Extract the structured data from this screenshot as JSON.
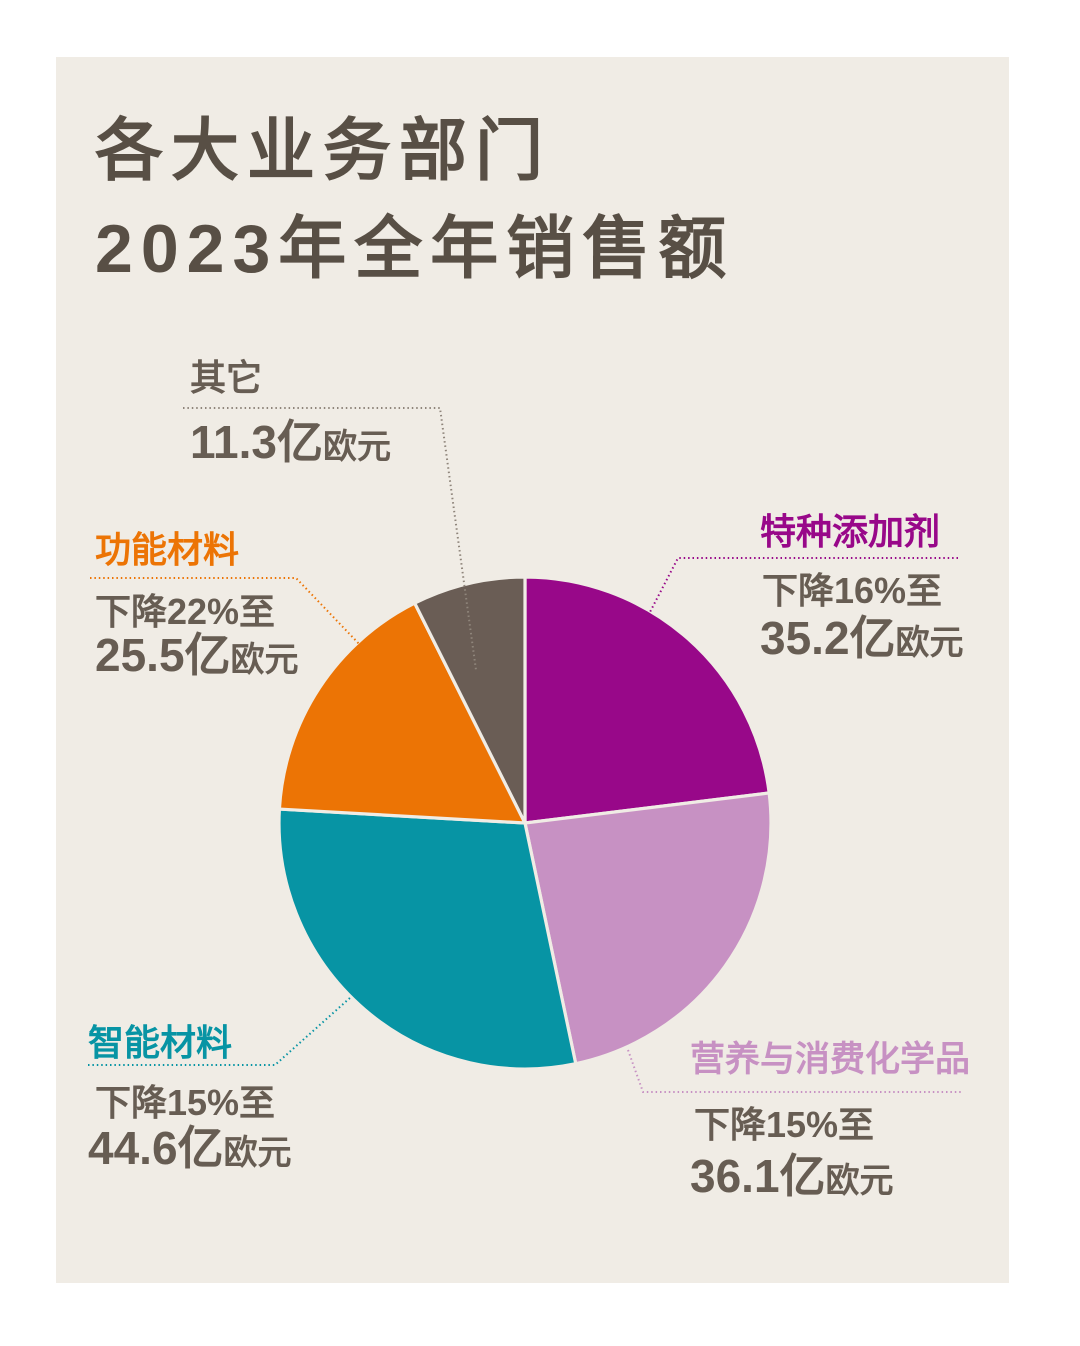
{
  "title": {
    "line1": "各大业务部门",
    "line2": "2023年全年销售额"
  },
  "colors": {
    "background": "#f0ece5",
    "page": "#ffffff",
    "title_text": "#584f45",
    "body_text": "#675d53",
    "purple": "#980889",
    "lilac": "#c791c3",
    "teal": "#0794a4",
    "orange": "#ec7405",
    "gray": "#6a5d55",
    "leader_gray": "#8f857b"
  },
  "chart_data": {
    "type": "pie",
    "title": "各大业务部门2023年全年销售额",
    "start_angle_deg": 0,
    "clockwise": true,
    "unit": "亿欧元",
    "series": [
      {
        "name": "特种添加剂",
        "value": 35.2,
        "color": "#980889",
        "change": "下降16%至"
      },
      {
        "name": "营养与消费化学品",
        "value": 36.1,
        "color": "#c791c3",
        "change": "下降15%至"
      },
      {
        "name": "智能材料",
        "value": 44.6,
        "color": "#0794a4",
        "change": "下降15%至"
      },
      {
        "name": "功能材料",
        "value": 25.5,
        "color": "#ec7405",
        "change": "下降22%至"
      },
      {
        "name": "其它",
        "value": 11.3,
        "color": "#6a5d55",
        "change": ""
      }
    ]
  },
  "labels": {
    "other": {
      "name": "其它",
      "amount": "11.3亿",
      "unit": "欧元"
    },
    "functional": {
      "name": "功能材料",
      "change": "下降22%至",
      "amount": "25.5亿",
      "unit": "欧元"
    },
    "specialty": {
      "name": "特种添加剂",
      "change": "下降16%至",
      "amount": "35.2亿",
      "unit": "欧元"
    },
    "smart": {
      "name": "智能材料",
      "change": "下降15%至",
      "amount": "44.6亿",
      "unit": "欧元"
    },
    "nutrition": {
      "name": "营养与消费化学品",
      "change": "下降15%至",
      "amount": "36.1亿",
      "unit": "欧元"
    }
  }
}
